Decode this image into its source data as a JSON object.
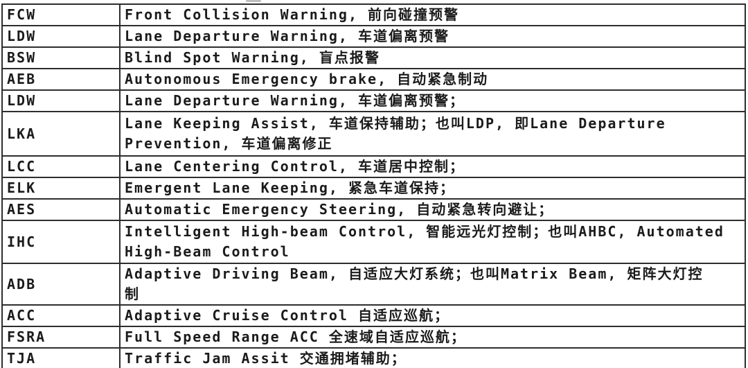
{
  "document": {
    "type": "abbreviation-glossary-table",
    "language": "English + Chinese",
    "colors": {
      "background": "#ffffff",
      "border": "#2d2d2d",
      "text": "#1b1b1b"
    },
    "table": {
      "columns": [
        {
          "key": "abbr",
          "role": "abbreviation"
        },
        {
          "key": "desc",
          "role": "description"
        }
      ],
      "rows": [
        {
          "abbr": "FCW",
          "lines": 1,
          "height_class": "lines-1",
          "desc_lines": [
            "Front Collision Warning, 前向碰撞预警"
          ]
        },
        {
          "abbr": "LDW",
          "lines": 1,
          "height_class": "lines-1",
          "desc_lines": [
            "Lane Departure Warning, 车道偏离预警"
          ]
        },
        {
          "abbr": "BSW",
          "lines": 1,
          "height_class": "lines-1",
          "desc_lines": [
            "Blind Spot Warning, 盲点报警"
          ]
        },
        {
          "abbr": "AEB",
          "lines": 1,
          "height_class": "lines-1",
          "desc_lines": [
            "Autonomous Emergency brake, 自动紧急制动"
          ]
        },
        {
          "abbr": "LDW",
          "lines": 1,
          "height_class": "lines-1",
          "desc_lines": [
            "Lane Departure Warning, 车道偏离预警；"
          ]
        },
        {
          "abbr": "LKA",
          "lines": 2,
          "height_class": "lines-2-a",
          "desc_lines": [
            "Lane Keeping Assist, 车道保持辅助；也叫LDP, 即Lane Departure",
            "Prevention, 车道偏离修正"
          ]
        },
        {
          "abbr": "LCC",
          "lines": 1,
          "height_class": "lines-1",
          "desc_lines": [
            "Lane Centering Control, 车道居中控制；"
          ]
        },
        {
          "abbr": "ELK",
          "lines": 1,
          "height_class": "lines-1",
          "desc_lines": [
            "Emergent Lane Keeping, 紧急车道保持；"
          ]
        },
        {
          "abbr": "AES",
          "lines": 1,
          "height_class": "lines-1",
          "desc_lines": [
            "Automatic Emergency Steering, 自动紧急转向避让；"
          ]
        },
        {
          "abbr": "IHC",
          "lines": 2,
          "height_class": "lines-2-b",
          "desc_lines": [
            "Intelligent High-beam Control, 智能远光灯控制；也叫AHBC, Automated",
            "High-Beam Control"
          ]
        },
        {
          "abbr": "ADB",
          "lines": 2,
          "height_class": "lines-2-c",
          "desc_lines": [
            "Adaptive Driving Beam, 自适应大灯系统；也叫Matrix Beam, 矩阵大灯控",
            "制"
          ]
        },
        {
          "abbr": "ACC",
          "lines": 1,
          "height_class": "lines-1",
          "desc_lines": [
            "Adaptive Cruise Control 自适应巡航；"
          ]
        },
        {
          "abbr": "FSRA",
          "lines": 1,
          "height_class": "lines-1",
          "desc_lines": [
            "Full Speed Range ACC 全速域自适应巡航；"
          ]
        },
        {
          "abbr": "TJA",
          "lines": 1,
          "height_class": "lines-1",
          "desc_lines": [
            "Traffic Jam Assit 交通拥堵辅助；"
          ]
        }
      ]
    }
  }
}
